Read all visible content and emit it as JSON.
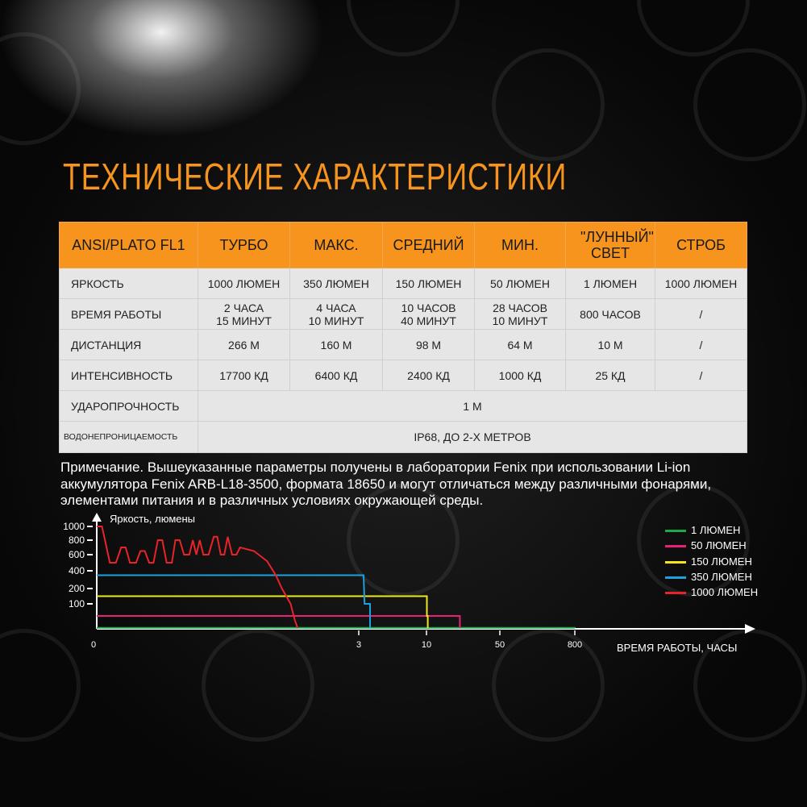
{
  "title": "ТЕХНИЧЕСКИЕ ХАРАКТЕРИСТИКИ",
  "table": {
    "header": [
      "ANSI/PLATO FL1",
      "ТУРБО",
      "МАКС.",
      "СРЕДНИЙ",
      "МИН.",
      "\"ЛУННЫЙ\" СВЕТ",
      "СТРОБ"
    ],
    "rows": [
      {
        "label": "ЯРКОСТЬ",
        "cells": [
          "1000 ЛЮМЕН",
          "350 ЛЮМЕН",
          "150 ЛЮМЕН",
          "50 ЛЮМЕН",
          "1 ЛЮМЕН",
          "1000 ЛЮМЕН"
        ]
      },
      {
        "label": "ВРЕМЯ РАБОТЫ",
        "cells": [
          "2 ЧАСА\n15 МИНУТ",
          "4 ЧАСА\n10 МИНУТ",
          "10 ЧАСОВ\n40 МИНУТ",
          "28 ЧАСОВ\n10 МИНУТ",
          "800 ЧАСОВ",
          "/"
        ]
      },
      {
        "label": "ДИСТАНЦИЯ",
        "cells": [
          "266 М",
          "160 М",
          "98 М",
          "64 М",
          "10 М",
          "/"
        ]
      },
      {
        "label": "ИНТЕНСИВНОСТЬ",
        "cells": [
          "17700 КД",
          "6400 КД",
          "2400 КД",
          "1000 КД",
          "25 КД",
          "/"
        ]
      }
    ],
    "impact": {
      "label": "УДАРОПРОЧНОСТЬ",
      "value": "1 М"
    },
    "water": {
      "label": "ВОДОНЕПРОНИЦАЕМОСТЬ",
      "value": "IP68, ДО 2-Х МЕТРОВ"
    }
  },
  "note": "Примечание. Вышеуказанные параметры получены в лаборатории Fenix при использовании Li-ion аккумулятора Fenix ARB-L18-3500, формата 18650 и могут отличаться между различными фонарями, элементами питания и в различных условиях окружающей среды.",
  "chart_data": {
    "type": "line",
    "ylabel": "Яркость, люмены",
    "xlabel": "ВРЕМЯ РАБОТЫ, ЧАСЫ",
    "yticks": [
      100,
      200,
      400,
      600,
      800,
      1000
    ],
    "xticks": [
      0,
      3,
      10,
      50,
      800
    ],
    "legend_position": "right",
    "series": [
      {
        "name": "1 ЛЮМЕН",
        "color": "#1fa84a",
        "points": [
          [
            0,
            1
          ],
          [
            800,
            1
          ],
          [
            800,
            0
          ]
        ]
      },
      {
        "name": "50 ЛЮМЕН",
        "color": "#e8207a",
        "points": [
          [
            0,
            50
          ],
          [
            28.2,
            50
          ],
          [
            28.2,
            0
          ]
        ]
      },
      {
        "name": "150 ЛЮМЕН",
        "color": "#f0e81c",
        "points": [
          [
            0,
            150
          ],
          [
            10.2,
            150
          ],
          [
            10.2,
            50
          ],
          [
            10.7,
            50
          ],
          [
            10.7,
            0
          ]
        ]
      },
      {
        "name": "350 ЛЮМЕН",
        "color": "#1ea0e0",
        "points": [
          [
            0,
            350
          ],
          [
            3.5,
            350
          ],
          [
            3.6,
            100
          ],
          [
            4.17,
            100
          ],
          [
            4.17,
            0
          ]
        ]
      },
      {
        "name": "1000 ЛЮМЕН",
        "color": "#e8242a",
        "points": [
          [
            0,
            1000
          ],
          [
            0.06,
            1000
          ],
          [
            0.15,
            500
          ],
          [
            0.22,
            500
          ],
          [
            0.28,
            700
          ],
          [
            0.33,
            700
          ],
          [
            0.38,
            500
          ],
          [
            0.45,
            500
          ],
          [
            0.5,
            650
          ],
          [
            0.55,
            650
          ],
          [
            0.6,
            500
          ],
          [
            0.65,
            500
          ],
          [
            0.7,
            800
          ],
          [
            0.75,
            800
          ],
          [
            0.8,
            500
          ],
          [
            0.86,
            500
          ],
          [
            0.9,
            800
          ],
          [
            0.95,
            800
          ],
          [
            1.0,
            600
          ],
          [
            1.06,
            600
          ],
          [
            1.1,
            800
          ],
          [
            1.14,
            600
          ],
          [
            1.18,
            800
          ],
          [
            1.22,
            600
          ],
          [
            1.28,
            600
          ],
          [
            1.34,
            850
          ],
          [
            1.38,
            850
          ],
          [
            1.42,
            600
          ],
          [
            1.46,
            600
          ],
          [
            1.5,
            850
          ],
          [
            1.55,
            600
          ],
          [
            1.6,
            600
          ],
          [
            1.64,
            700
          ],
          [
            1.8,
            650
          ],
          [
            1.95,
            520
          ],
          [
            2.05,
            350
          ],
          [
            2.12,
            200
          ],
          [
            2.17,
            150
          ],
          [
            2.22,
            100
          ],
          [
            2.27,
            30
          ],
          [
            2.3,
            0
          ]
        ]
      }
    ]
  }
}
